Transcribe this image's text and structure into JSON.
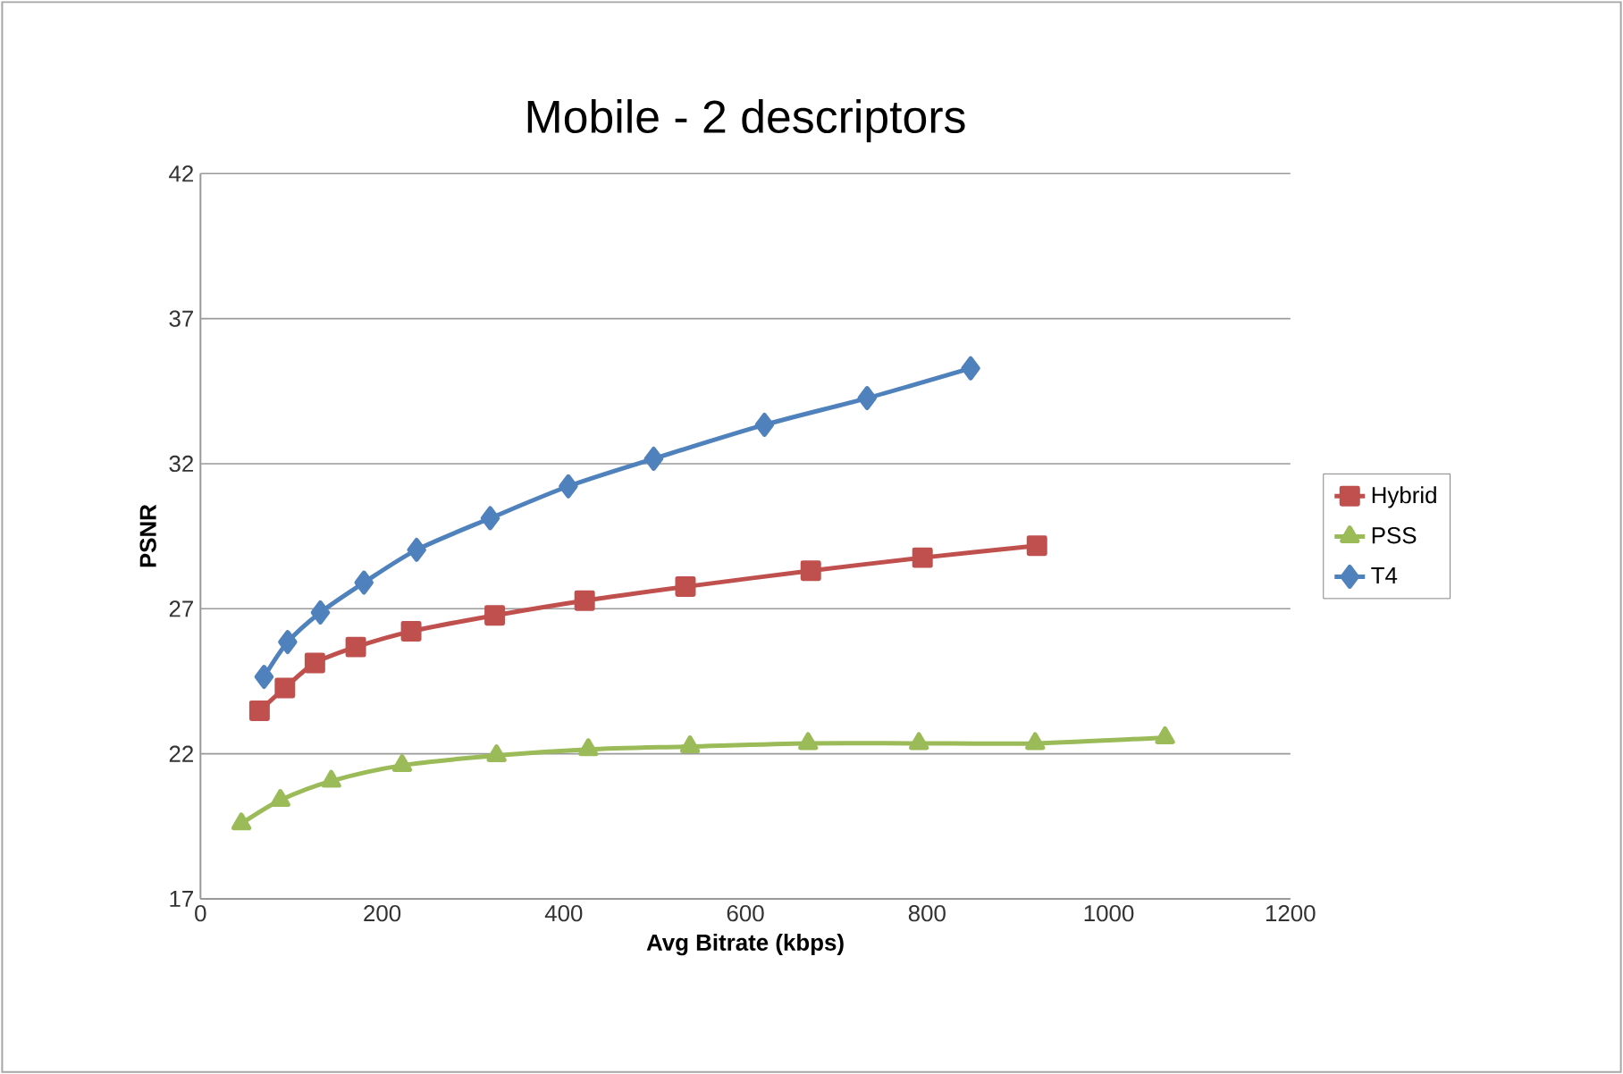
{
  "chart_data": {
    "type": "line",
    "title": "Mobile - 2 descriptors",
    "xlabel": "Avg Bitrate (kbps)",
    "ylabel": "PSNR",
    "xlim": [
      0,
      1200
    ],
    "xticks": [
      0,
      200,
      400,
      600,
      800,
      1000,
      1200
    ],
    "ylim": [
      17,
      42
    ],
    "yticks": [
      17,
      22,
      27,
      32,
      37,
      42
    ],
    "grid": "y",
    "legend": "right",
    "line_style": "solid",
    "series": [
      {
        "name": "Hybrid",
        "color": "#c0504d",
        "marker": "square",
        "x": [
          65,
          93,
          126,
          171,
          232,
          324,
          423,
          534,
          672,
          795,
          921
        ],
        "values": [
          23.48,
          24.27,
          25.13,
          25.68,
          26.22,
          26.77,
          27.28,
          27.76,
          28.31,
          28.76,
          29.17
        ]
      },
      {
        "name": "PSS",
        "color": "#9bbb59",
        "marker": "triangle",
        "x": [
          45,
          88,
          144,
          222,
          326,
          427,
          539,
          669,
          791,
          919,
          1062
        ],
        "values": [
          19.59,
          20.4,
          21.06,
          21.6,
          21.94,
          22.15,
          22.25,
          22.36,
          22.36,
          22.36,
          22.56
        ]
      },
      {
        "name": "T4",
        "color": "#4f81bd",
        "marker": "diamond",
        "x": [
          70,
          96,
          132,
          180,
          238,
          319,
          405,
          499,
          621,
          734,
          848
        ],
        "values": [
          24.65,
          25.85,
          26.87,
          27.9,
          29.03,
          30.12,
          31.22,
          32.17,
          33.34,
          34.26,
          35.29
        ]
      }
    ]
  }
}
